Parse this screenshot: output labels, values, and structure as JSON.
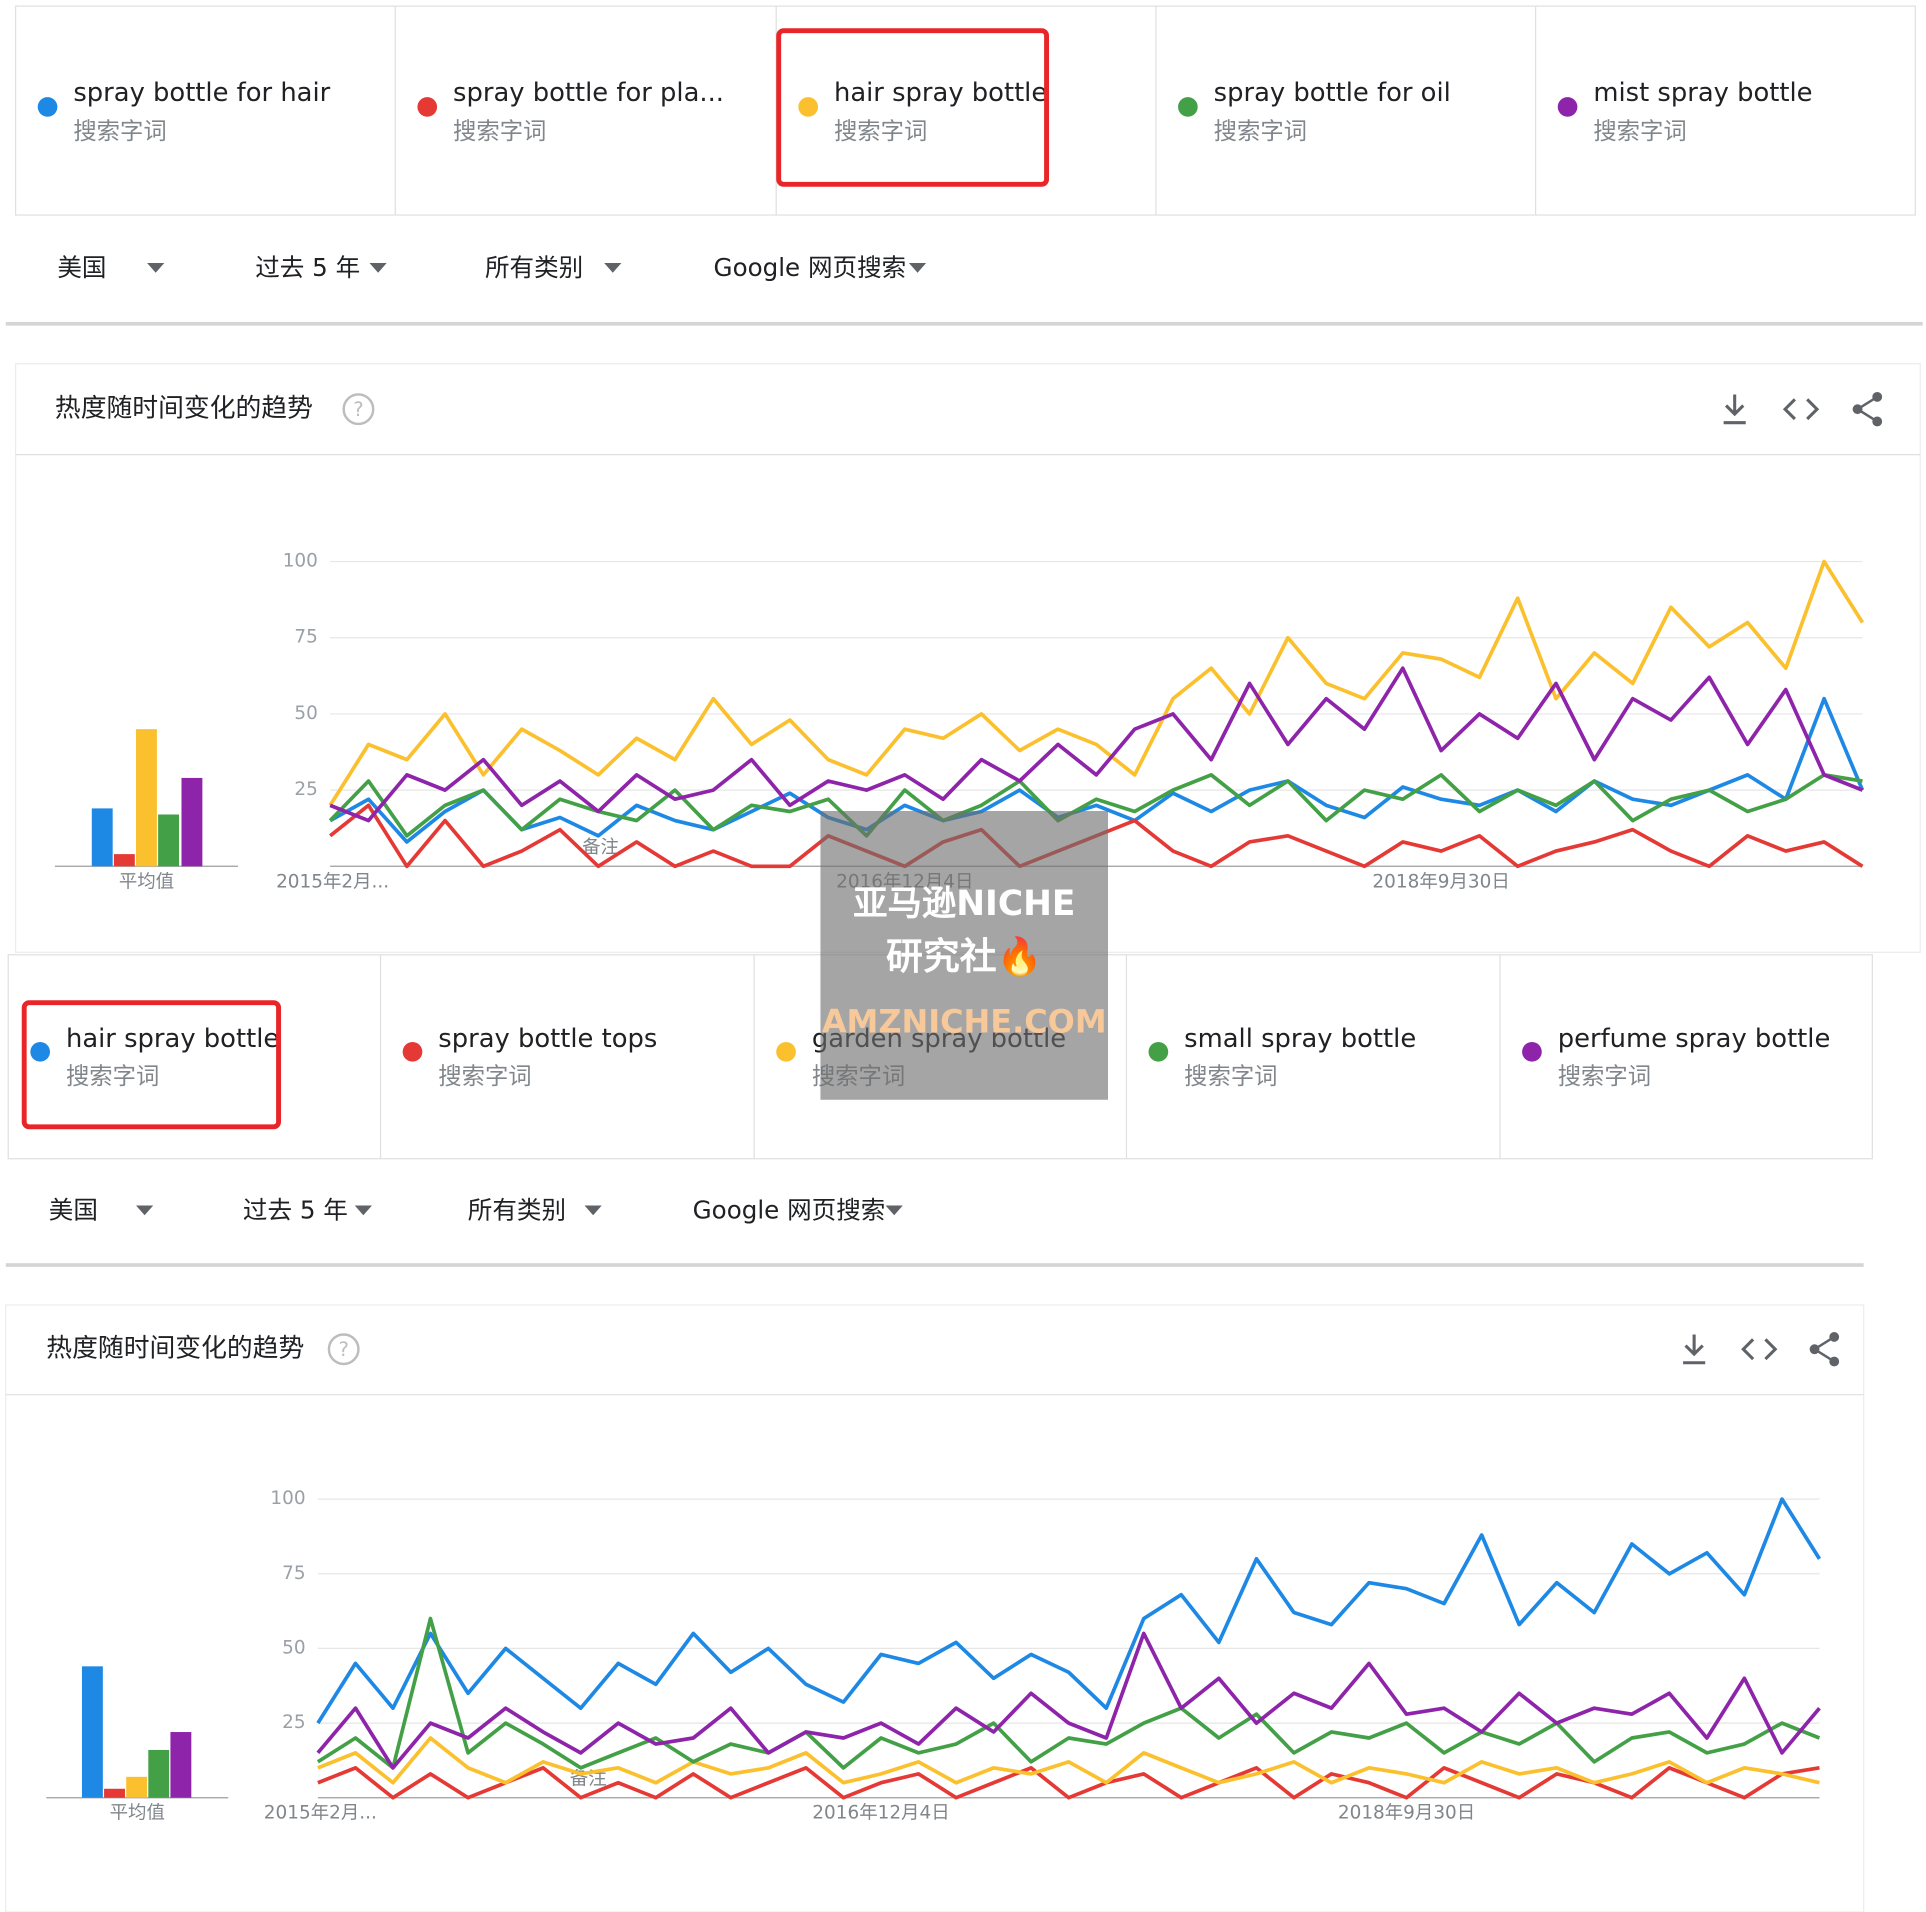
{
  "panels": [
    {
      "term_subtitle": "搜索字词",
      "filters": [
        "美国",
        "过去 5 年",
        "所有类别",
        "Google 网页搜索"
      ],
      "card_title": "热度随时间变化的趋势",
      "average_label": "平均值",
      "annotation": "备注",
      "highlight": 2,
      "chart_data": {
        "type": "line",
        "ylim": [
          0,
          100
        ],
        "yticks": [
          25,
          50,
          75,
          100
        ],
        "grid": true,
        "categories": [
          "2015年2月...",
          null,
          null,
          null,
          null,
          null,
          null,
          null,
          null,
          null,
          null,
          null,
          null,
          null,
          null,
          "2016年12月4日",
          null,
          null,
          null,
          null,
          null,
          null,
          null,
          null,
          null,
          null,
          null,
          null,
          null,
          "2018年9月30日",
          null,
          null,
          null,
          null,
          null,
          null,
          null,
          null,
          null,
          null,
          null
        ],
        "series": [
          {
            "name": "spray bottle for hair",
            "color": "#1e88e5",
            "average": 19,
            "values": [
              15,
              22,
              8,
              18,
              25,
              12,
              16,
              10,
              20,
              15,
              12,
              18,
              24,
              16,
              12,
              20,
              15,
              18,
              25,
              16,
              20,
              15,
              24,
              18,
              25,
              28,
              20,
              16,
              26,
              22,
              20,
              25,
              18,
              28,
              22,
              20,
              25,
              30,
              22,
              55,
              25
            ]
          },
          {
            "name": "spray bottle for pla...",
            "color": "#e53935",
            "average": 4,
            "values": [
              10,
              20,
              0,
              15,
              0,
              5,
              12,
              0,
              8,
              0,
              5,
              0,
              0,
              10,
              5,
              0,
              8,
              12,
              0,
              5,
              10,
              15,
              5,
              0,
              8,
              10,
              5,
              0,
              8,
              5,
              10,
              0,
              5,
              8,
              12,
              5,
              0,
              10,
              5,
              8,
              0
            ]
          },
          {
            "name": "hair spray bottle",
            "color": "#fbc02d",
            "average": 45,
            "values": [
              20,
              40,
              35,
              50,
              30,
              45,
              38,
              30,
              42,
              35,
              55,
              40,
              48,
              35,
              30,
              45,
              42,
              50,
              38,
              45,
              40,
              30,
              55,
              65,
              50,
              75,
              60,
              55,
              70,
              68,
              62,
              88,
              55,
              70,
              60,
              85,
              72,
              80,
              65,
              100,
              80
            ]
          },
          {
            "name": "spray bottle for oil",
            "color": "#43a047",
            "average": 17,
            "values": [
              15,
              28,
              10,
              20,
              25,
              12,
              22,
              18,
              15,
              25,
              12,
              20,
              18,
              22,
              10,
              25,
              15,
              20,
              28,
              15,
              22,
              18,
              25,
              30,
              20,
              28,
              15,
              25,
              22,
              30,
              18,
              25,
              20,
              28,
              15,
              22,
              25,
              18,
              22,
              30,
              28
            ]
          },
          {
            "name": "mist spray bottle",
            "color": "#8e24aa",
            "average": 29,
            "values": [
              20,
              15,
              30,
              25,
              35,
              20,
              28,
              18,
              30,
              22,
              25,
              35,
              20,
              28,
              25,
              30,
              22,
              35,
              28,
              40,
              30,
              45,
              50,
              35,
              60,
              40,
              55,
              45,
              65,
              38,
              50,
              42,
              60,
              35,
              55,
              48,
              62,
              40,
              58,
              30,
              25
            ]
          }
        ]
      }
    },
    {
      "term_subtitle": "搜索字词",
      "filters": [
        "美国",
        "过去 5 年",
        "所有类别",
        "Google 网页搜索"
      ],
      "card_title": "热度随时间变化的趋势",
      "average_label": "平均值",
      "annotation": "备注",
      "highlight": 0,
      "chart_data": {
        "type": "line",
        "ylim": [
          0,
          100
        ],
        "yticks": [
          25,
          50,
          75,
          100
        ],
        "grid": true,
        "categories": [
          "2015年2月...",
          null,
          null,
          null,
          null,
          null,
          null,
          null,
          null,
          null,
          null,
          null,
          null,
          null,
          null,
          "2016年12月4日",
          null,
          null,
          null,
          null,
          null,
          null,
          null,
          null,
          null,
          null,
          null,
          null,
          null,
          "2018年9月30日",
          null,
          null,
          null,
          null,
          null,
          null,
          null,
          null,
          null,
          null,
          null
        ],
        "series": [
          {
            "name": "hair spray bottle",
            "color": "#1e88e5",
            "average": 44,
            "values": [
              25,
              45,
              30,
              55,
              35,
              50,
              40,
              30,
              45,
              38,
              55,
              42,
              50,
              38,
              32,
              48,
              45,
              52,
              40,
              48,
              42,
              30,
              60,
              68,
              52,
              80,
              62,
              58,
              72,
              70,
              65,
              88,
              58,
              72,
              62,
              85,
              75,
              82,
              68,
              100,
              80
            ]
          },
          {
            "name": "spray bottle tops",
            "color": "#e53935",
            "average": 3,
            "values": [
              5,
              10,
              0,
              8,
              0,
              5,
              10,
              0,
              5,
              0,
              8,
              0,
              5,
              10,
              0,
              5,
              8,
              0,
              5,
              10,
              0,
              5,
              8,
              0,
              5,
              10,
              0,
              8,
              5,
              0,
              10,
              5,
              0,
              8,
              5,
              0,
              10,
              5,
              0,
              8,
              10
            ]
          },
          {
            "name": "garden spray bottle",
            "color": "#fbc02d",
            "average": 7,
            "values": [
              10,
              15,
              5,
              20,
              10,
              5,
              12,
              8,
              10,
              5,
              12,
              8,
              10,
              15,
              5,
              8,
              12,
              5,
              10,
              8,
              12,
              5,
              15,
              10,
              5,
              8,
              12,
              5,
              10,
              8,
              5,
              12,
              8,
              10,
              5,
              8,
              12,
              5,
              10,
              8,
              5
            ]
          },
          {
            "name": "small spray bottle",
            "color": "#43a047",
            "average": 16,
            "values": [
              12,
              20,
              10,
              60,
              15,
              25,
              18,
              10,
              15,
              20,
              12,
              18,
              15,
              22,
              10,
              20,
              15,
              18,
              25,
              12,
              20,
              18,
              25,
              30,
              20,
              28,
              15,
              22,
              20,
              25,
              15,
              22,
              18,
              25,
              12,
              20,
              22,
              15,
              18,
              25,
              20
            ]
          },
          {
            "name": "perfume spray bottle",
            "color": "#8e24aa",
            "average": 22,
            "values": [
              15,
              30,
              10,
              25,
              20,
              30,
              22,
              15,
              25,
              18,
              20,
              30,
              15,
              22,
              20,
              25,
              18,
              30,
              22,
              35,
              25,
              20,
              55,
              30,
              40,
              25,
              35,
              30,
              45,
              28,
              30,
              22,
              35,
              25,
              30,
              28,
              35,
              20,
              40,
              15,
              30
            ]
          }
        ]
      }
    }
  ],
  "watermark": [
    "亚马逊NICHE",
    "研究社🔥",
    "AMZNICHE.COM"
  ]
}
